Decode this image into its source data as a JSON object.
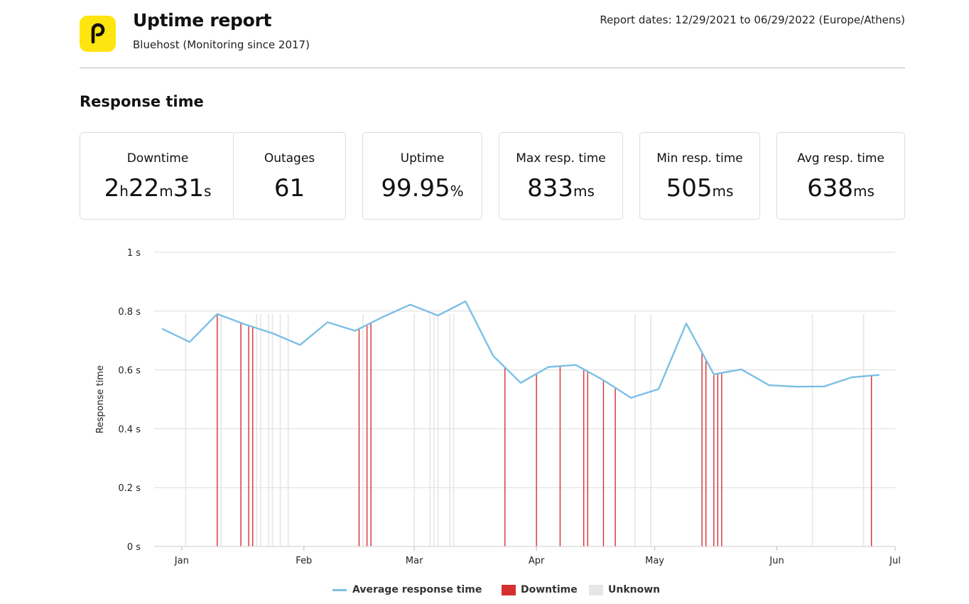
{
  "header": {
    "title": "Uptime report",
    "subtitle": "Bluehost (Monitoring since 2017)",
    "report_dates": "Report dates: 12/29/2021 to 06/29/2022 (Europe/Athens)",
    "logo_letter": "p"
  },
  "section": {
    "title": "Response time"
  },
  "stats": {
    "downtime": {
      "label": "Downtime",
      "h": "2",
      "h_unit": "h",
      "m": "22",
      "m_unit": "m",
      "s": "31",
      "s_unit": "s"
    },
    "outages": {
      "label": "Outages",
      "value": "61"
    },
    "uptime": {
      "label": "Uptime",
      "value": "99.95",
      "unit": "%"
    },
    "max_resp": {
      "label": "Max resp. time",
      "value": "833",
      "unit": "ms"
    },
    "min_resp": {
      "label": "Min resp. time",
      "value": "505",
      "unit": "ms"
    },
    "avg_resp": {
      "label": "Avg resp. time",
      "value": "638",
      "unit": "ms"
    }
  },
  "colors": {
    "logo": "#ffe50f",
    "line": "#7cbfe6",
    "downtime": "#d62f2f",
    "unknown": "#e6e6e6",
    "grid": "#dddddd"
  },
  "chart_data": {
    "type": "line",
    "ylabel": "Response time",
    "xlabel": "",
    "ylim": [
      0,
      1
    ],
    "y_ticks": [
      {
        "value": 0,
        "label": "0 s"
      },
      {
        "value": 0.2,
        "label": "0.2 s"
      },
      {
        "value": 0.4,
        "label": "0.4 s"
      },
      {
        "value": 0.6,
        "label": "0.6 s"
      },
      {
        "value": 0.8,
        "label": "0.8 s"
      },
      {
        "value": 1,
        "label": "1 s"
      }
    ],
    "x_range": [
      "2021-12-25",
      "2022-07-01"
    ],
    "x_ticks": [
      {
        "date": "2022-01-01",
        "label": "Jan"
      },
      {
        "date": "2022-02-01",
        "label": "Feb"
      },
      {
        "date": "2022-03-01",
        "label": "Mar"
      },
      {
        "date": "2022-04-01",
        "label": "Apr"
      },
      {
        "date": "2022-05-01",
        "label": "May"
      },
      {
        "date": "2022-06-01",
        "label": "Jun"
      },
      {
        "date": "2022-07-01",
        "label": "Jul"
      }
    ],
    "grid": true,
    "legend_position": "bottom",
    "series": [
      {
        "name": "Average response time",
        "points": [
          {
            "x": "2021-12-27",
            "y": 0.74
          },
          {
            "x": "2022-01-03",
            "y": 0.695
          },
          {
            "x": "2022-01-10",
            "y": 0.79
          },
          {
            "x": "2022-01-17",
            "y": 0.755
          },
          {
            "x": "2022-01-24",
            "y": 0.725
          },
          {
            "x": "2022-01-31",
            "y": 0.685
          },
          {
            "x": "2022-02-07",
            "y": 0.762
          },
          {
            "x": "2022-02-14",
            "y": 0.733
          },
          {
            "x": "2022-02-21",
            "y": 0.78
          },
          {
            "x": "2022-02-28",
            "y": 0.822
          },
          {
            "x": "2022-03-07",
            "y": 0.785
          },
          {
            "x": "2022-03-14",
            "y": 0.833
          },
          {
            "x": "2022-03-21",
            "y": 0.648
          },
          {
            "x": "2022-03-28",
            "y": 0.556
          },
          {
            "x": "2022-04-04",
            "y": 0.61
          },
          {
            "x": "2022-04-11",
            "y": 0.617
          },
          {
            "x": "2022-04-18",
            "y": 0.565
          },
          {
            "x": "2022-04-25",
            "y": 0.505
          },
          {
            "x": "2022-05-02",
            "y": 0.535
          },
          {
            "x": "2022-05-09",
            "y": 0.758
          },
          {
            "x": "2022-05-16",
            "y": 0.585
          },
          {
            "x": "2022-05-23",
            "y": 0.602
          },
          {
            "x": "2022-05-30",
            "y": 0.548
          },
          {
            "x": "2022-06-06",
            "y": 0.543
          },
          {
            "x": "2022-06-13",
            "y": 0.544
          },
          {
            "x": "2022-06-20",
            "y": 0.575
          },
          {
            "x": "2022-06-27",
            "y": 0.583
          }
        ]
      }
    ],
    "downtime_events": [
      "2022-01-10",
      "2022-01-16",
      "2022-01-18",
      "2022-01-19",
      "2022-02-15",
      "2022-02-17",
      "2022-02-18",
      "2022-03-24",
      "2022-04-01",
      "2022-04-07",
      "2022-04-13",
      "2022-04-14",
      "2022-04-18",
      "2022-04-21",
      "2022-05-13",
      "2022-05-14",
      "2022-05-16",
      "2022-05-17",
      "2022-05-18",
      "2022-06-25"
    ],
    "unknown_events": [
      "2022-01-02",
      "2022-01-11",
      "2022-01-20",
      "2022-01-21",
      "2022-01-23",
      "2022-01-24",
      "2022-01-26",
      "2022-01-28",
      "2022-02-16",
      "2022-03-01",
      "2022-03-05",
      "2022-03-06",
      "2022-03-07",
      "2022-03-10",
      "2022-03-11",
      "2022-04-26",
      "2022-04-30",
      "2022-06-10",
      "2022-06-23"
    ],
    "legend": [
      {
        "label": "Average response time",
        "kind": "line"
      },
      {
        "label": "Downtime",
        "kind": "box"
      },
      {
        "label": "Unknown",
        "kind": "box"
      }
    ]
  }
}
